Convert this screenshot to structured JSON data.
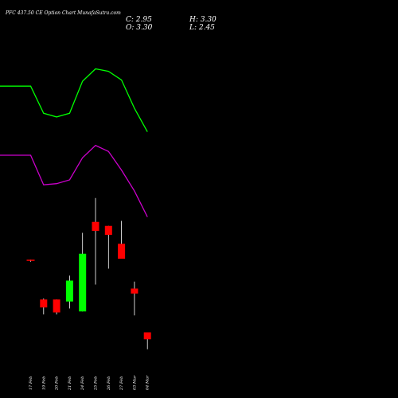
{
  "header": {
    "title": "PFC 437.50  CE Option  Chart MunafaSutra.com",
    "close_text": "C: 2.95",
    "open_text": "O: 3.30",
    "high_text": "H: 3.30",
    "low_text": "L: 2.45"
  },
  "chart_data": {
    "type": "candlestick",
    "title": "PFC 437.50  CE Option  Chart MunafaSutra.com",
    "categories": [
      "17 Feb",
      "19 Feb",
      "20 Feb",
      "21 Feb",
      "24 Feb",
      "25 Feb",
      "26 Feb",
      "27 Feb",
      "03 Mar",
      "04 Mar"
    ],
    "candles": [
      {
        "date": "17 Feb",
        "open": 6.95,
        "high": 6.95,
        "low": 6.85,
        "close": 6.9
      },
      {
        "date": "19 Feb",
        "open": 4.95,
        "high": 5.0,
        "low": 4.2,
        "close": 4.55
      },
      {
        "date": "20 Feb",
        "open": 4.95,
        "high": 4.95,
        "low": 4.2,
        "close": 4.3
      },
      {
        "date": "21 Feb",
        "open": 4.85,
        "high": 6.15,
        "low": 4.5,
        "close": 5.9
      },
      {
        "date": "24 Feb",
        "open": 4.35,
        "high": 8.3,
        "low": 4.35,
        "close": 7.25
      },
      {
        "date": "25 Feb",
        "open": 8.85,
        "high": 10.05,
        "low": 5.7,
        "close": 8.4
      },
      {
        "date": "26 Feb",
        "open": 8.65,
        "high": 8.65,
        "low": 6.5,
        "close": 8.2
      },
      {
        "date": "27 Feb",
        "open": 7.75,
        "high": 8.9,
        "low": 7.0,
        "close": 7.0
      },
      {
        "date": "03 Mar",
        "open": 5.5,
        "high": 5.85,
        "low": 4.15,
        "close": 5.25
      },
      {
        "date": "04 Mar",
        "open": 3.3,
        "high": 3.3,
        "low": 2.45,
        "close": 2.95
      }
    ],
    "upper_band": [
      25.6,
      25.6,
      23.4,
      23.1,
      23.4,
      26.0,
      27.0,
      26.8,
      26.1,
      23.8,
      21.9
    ],
    "lower_band": [
      20.0,
      20.0,
      17.6,
      17.7,
      18.0,
      19.8,
      20.8,
      20.3,
      18.8,
      17.1,
      15.0
    ],
    "band_x_index": [
      -1,
      0,
      1,
      2,
      3,
      4,
      5,
      6,
      7,
      8,
      9
    ],
    "colors": {
      "background": "#000000",
      "up": "#00ff00",
      "down": "#ff0000",
      "upper_band": "#00ff00",
      "lower_band": "#cc00cc",
      "wick": "#ffffff"
    }
  }
}
